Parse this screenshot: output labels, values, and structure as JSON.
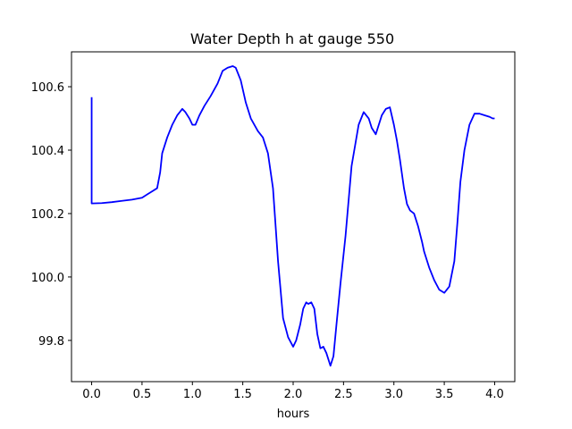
{
  "chart_data": {
    "type": "line",
    "title": "Water Depth h at gauge 550",
    "xlabel": "hours",
    "ylabel": "",
    "xlim": [
      -0.2,
      4.2
    ],
    "ylim": [
      99.67,
      100.71
    ],
    "xticks": [
      0.0,
      0.5,
      1.0,
      1.5,
      2.0,
      2.5,
      3.0,
      3.5,
      4.0
    ],
    "xtick_labels": [
      "0.0",
      "0.5",
      "1.0",
      "1.5",
      "2.0",
      "2.5",
      "3.0",
      "3.5",
      "4.0"
    ],
    "yticks": [
      99.8,
      100.0,
      100.2,
      100.4,
      100.6
    ],
    "ytick_labels": [
      "99.8",
      "100.0",
      "100.2",
      "100.4",
      "100.6"
    ],
    "grid": false,
    "legend": "none",
    "series": [
      {
        "color": "#0000ff",
        "x": [
          0.0,
          0.0,
          0.001,
          0.1,
          0.2,
          0.3,
          0.4,
          0.5,
          0.55,
          0.6,
          0.65,
          0.68,
          0.7,
          0.72,
          0.75,
          0.8,
          0.85,
          0.9,
          0.93,
          0.97,
          1.0,
          1.03,
          1.07,
          1.12,
          1.18,
          1.25,
          1.3,
          1.35,
          1.4,
          1.43,
          1.48,
          1.53,
          1.58,
          1.65,
          1.7,
          1.75,
          1.8,
          1.85,
          1.9,
          1.95,
          2.0,
          2.03,
          2.07,
          2.1,
          2.13,
          2.15,
          2.18,
          2.21,
          2.24,
          2.27,
          2.3,
          2.33,
          2.37,
          2.4,
          2.43,
          2.47,
          2.52,
          2.58,
          2.65,
          2.7,
          2.75,
          2.78,
          2.82,
          2.85,
          2.88,
          2.92,
          2.96,
          3.0,
          3.03,
          3.06,
          3.1,
          3.13,
          3.16,
          3.2,
          3.24,
          3.28,
          3.3,
          3.35,
          3.4,
          3.45,
          3.5,
          3.55,
          3.6,
          3.63,
          3.66,
          3.7,
          3.75,
          3.8,
          3.85,
          3.9,
          3.95,
          3.98,
          4.0
        ],
        "values": [
          100.567,
          100.232,
          100.232,
          100.233,
          100.236,
          100.24,
          100.244,
          100.25,
          100.26,
          100.27,
          100.28,
          100.33,
          100.39,
          100.41,
          100.44,
          100.48,
          100.51,
          100.53,
          100.52,
          100.5,
          100.48,
          100.48,
          100.51,
          100.54,
          100.57,
          100.61,
          100.65,
          100.66,
          100.665,
          100.66,
          100.62,
          100.55,
          100.5,
          100.46,
          100.44,
          100.39,
          100.28,
          100.05,
          99.87,
          99.81,
          99.78,
          99.8,
          99.85,
          99.9,
          99.92,
          99.915,
          99.92,
          99.9,
          99.82,
          99.775,
          99.78,
          99.76,
          99.72,
          99.75,
          99.85,
          99.98,
          100.13,
          100.35,
          100.48,
          100.52,
          100.5,
          100.47,
          100.45,
          100.48,
          100.51,
          100.53,
          100.535,
          100.48,
          100.43,
          100.37,
          100.28,
          100.23,
          100.21,
          100.2,
          100.16,
          100.11,
          100.08,
          100.03,
          99.99,
          99.96,
          99.95,
          99.97,
          100.05,
          100.17,
          100.3,
          100.4,
          100.48,
          100.515,
          100.515,
          100.51,
          100.505,
          100.5,
          100.5
        ]
      }
    ]
  }
}
